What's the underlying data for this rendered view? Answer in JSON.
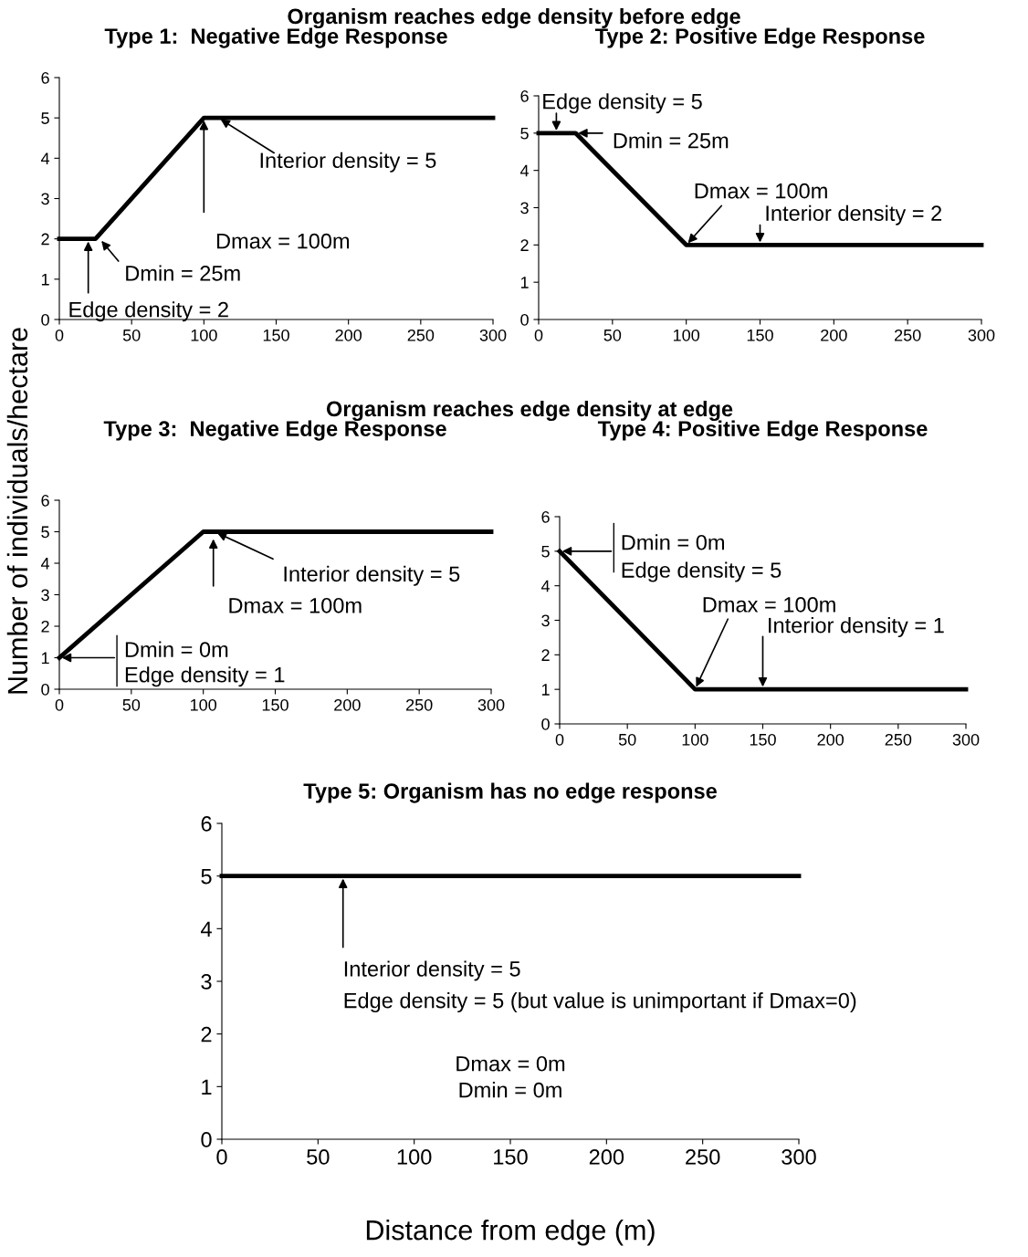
{
  "chart_data": [
    {
      "type": "line",
      "title": "Type 1:  Negative Edge Response",
      "x": [
        0,
        25,
        100,
        300
      ],
      "series": [
        {
          "color": "#000000",
          "values": [
            2,
            2,
            5,
            5
          ]
        }
      ],
      "xlim": [
        0,
        300
      ],
      "xticks": [
        0,
        50,
        100,
        150,
        200,
        250,
        300
      ],
      "ylim": [
        0,
        6
      ],
      "yticks": [
        0,
        1,
        2,
        3,
        4,
        5,
        6
      ],
      "grid": false,
      "marker": "none",
      "line_style": "solid",
      "annotations": [
        "Organism reaches edge density before edge",
        {
          "text": "Interior density = 5",
          "x": 110,
          "y": 5
        },
        {
          "text": "Dmax = 100m",
          "x": 100,
          "y": 5
        },
        {
          "text": "Dmin = 25m",
          "x": 28,
          "y": 2
        },
        {
          "text": "Edge density = 2",
          "x": 20,
          "y": 2
        }
      ]
    },
    {
      "type": "line",
      "title": "Type 2: Positive Edge Response",
      "x": [
        0,
        25,
        100,
        300
      ],
      "series": [
        {
          "color": "#000000",
          "values": [
            5,
            5,
            2,
            2
          ]
        }
      ],
      "xlim": [
        0,
        300
      ],
      "xticks": [
        0,
        50,
        100,
        150,
        200,
        250,
        300
      ],
      "ylim": [
        0,
        6
      ],
      "yticks": [
        0,
        1,
        2,
        3,
        4,
        5,
        6
      ],
      "grid": false,
      "marker": "none",
      "line_style": "solid",
      "annotations": [
        {
          "text": "Edge density = 5",
          "x": 12,
          "y": 5
        },
        {
          "text": "Dmin = 25m",
          "x": 25,
          "y": 5
        },
        {
          "text": "Dmax = 100m",
          "x": 100,
          "y": 2
        },
        {
          "text": "Interior density = 2",
          "x": 150,
          "y": 2
        }
      ]
    },
    {
      "type": "line",
      "title": "Type 3:  Negative Edge Response",
      "ylabel": "Number of individuals/hectare",
      "x": [
        0,
        100,
        300
      ],
      "series": [
        {
          "color": "#000000",
          "values": [
            1,
            5,
            5
          ]
        }
      ],
      "xlim": [
        0,
        300
      ],
      "xticks": [
        0,
        50,
        100,
        150,
        200,
        250,
        300
      ],
      "ylim": [
        0,
        6
      ],
      "yticks": [
        0,
        1,
        2,
        3,
        4,
        5,
        6
      ],
      "grid": false,
      "marker": "none",
      "line_style": "solid",
      "annotations": [
        "Organism reaches edge density at edge",
        {
          "text": "Interior density = 5",
          "x": 108,
          "y": 5
        },
        {
          "text": "Dmax = 100m",
          "x": 107,
          "y": 4.85
        },
        {
          "text": "Dmin = 0m",
          "x": 0,
          "y": 1
        },
        "Edge density = 1"
      ]
    },
    {
      "type": "line",
      "title": "Type 4: Positive Edge Response",
      "x": [
        0,
        100,
        300
      ],
      "series": [
        {
          "color": "#000000",
          "values": [
            5,
            1,
            1
          ]
        }
      ],
      "xlim": [
        0,
        300
      ],
      "xticks": [
        0,
        50,
        100,
        150,
        200,
        250,
        300
      ],
      "ylim": [
        0,
        6
      ],
      "yticks": [
        0,
        1,
        2,
        3,
        4,
        5,
        6
      ],
      "grid": false,
      "marker": "none",
      "line_style": "solid",
      "annotations": [
        {
          "text": "Dmin = 0m",
          "x": 0,
          "y": 5
        },
        "Edge density = 5",
        {
          "text": "Dmax = 100m",
          "x": 100,
          "y": 1
        },
        {
          "text": "Interior density = 1",
          "x": 150,
          "y": 1
        }
      ]
    },
    {
      "type": "line",
      "title": "Type 5: Organism has no edge response",
      "xlabel": "Distance from edge (m)",
      "x": [
        0,
        300
      ],
      "series": [
        {
          "color": "#000000",
          "values": [
            5,
            5
          ]
        }
      ],
      "xlim": [
        0,
        300
      ],
      "xticks": [
        0,
        50,
        100,
        150,
        200,
        250,
        300
      ],
      "ylim": [
        0,
        6
      ],
      "yticks": [
        0,
        1,
        2,
        3,
        4,
        5,
        6
      ],
      "grid": false,
      "marker": "none",
      "line_style": "solid",
      "annotations": [
        {
          "text": "Interior density = 5",
          "x": 63,
          "y": 5
        },
        "Edge density = 5 (but value is unimportant if Dmax=0)",
        "Dmax = 0m",
        "Dmin = 0m"
      ]
    }
  ]
}
